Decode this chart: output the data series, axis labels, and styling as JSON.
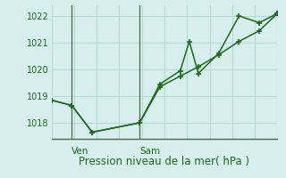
{
  "background_color": "#d6eeec",
  "grid_color": "#b8dbd9",
  "line_color": "#1a6b1a",
  "xlabel": "Pression niveau de la mer( hPa )",
  "ylim": [
    1017.4,
    1022.4
  ],
  "yticks": [
    1018,
    1019,
    1020,
    1021,
    1022
  ],
  "xlim": [
    0,
    10
  ],
  "ven_x": 0.9,
  "sam_x": 3.9,
  "vline_color": "#4a6b4a",
  "line1_x": [
    0.0,
    0.9,
    1.8,
    3.9,
    4.8,
    5.7,
    6.1,
    6.5,
    7.4,
    8.3,
    9.2,
    10.0
  ],
  "line1_y": [
    1018.85,
    1018.65,
    1017.65,
    1018.0,
    1019.45,
    1019.95,
    1021.05,
    1019.85,
    1020.6,
    1022.0,
    1021.75,
    1022.1
  ],
  "line2_x": [
    0.0,
    0.9,
    1.8,
    3.9,
    4.8,
    5.7,
    6.5,
    7.4,
    8.3,
    9.2,
    10.0
  ],
  "line2_y": [
    1018.85,
    1018.65,
    1017.65,
    1018.0,
    1019.35,
    1019.75,
    1020.1,
    1020.55,
    1021.05,
    1021.45,
    1022.1
  ],
  "num_vgrid": 10,
  "ylabel_fontsize": 7,
  "xlabel_fontsize": 8.5,
  "day_label_fontsize": 7.5
}
